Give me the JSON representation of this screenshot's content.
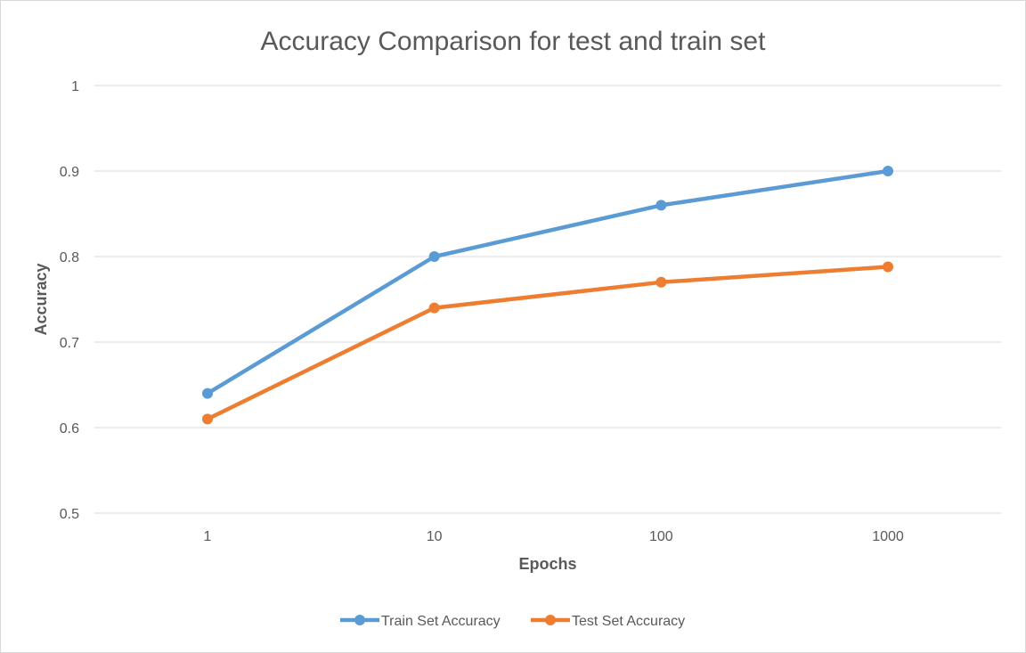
{
  "chart_data": {
    "type": "line",
    "title": "Accuracy Comparison for test and train set",
    "xlabel": "Epochs",
    "ylabel": "Accuracy",
    "categories": [
      "1",
      "10",
      "100",
      "1000"
    ],
    "ylim": [
      0.5,
      1
    ],
    "yticks": [
      "0.5",
      "0.6",
      "0.7",
      "0.8",
      "0.9",
      "1"
    ],
    "grid": "horizontal",
    "legend_position": "bottom",
    "series": [
      {
        "name": "Train Set Accuracy",
        "color": "#5b9bd5",
        "values": [
          0.64,
          0.8,
          0.86,
          0.9
        ]
      },
      {
        "name": "Test Set Accuracy",
        "color": "#ed7d31",
        "values": [
          0.61,
          0.74,
          0.77,
          0.788
        ]
      }
    ]
  }
}
